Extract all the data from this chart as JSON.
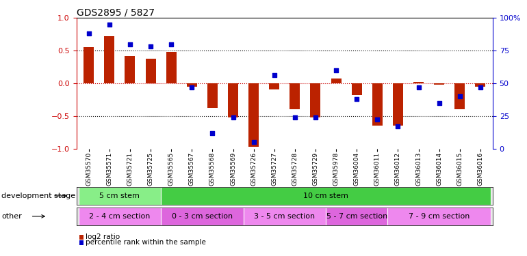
{
  "title": "GDS2895 / 5827",
  "samples": [
    "GSM35570",
    "GSM35571",
    "GSM35721",
    "GSM35725",
    "GSM35565",
    "GSM35567",
    "GSM35568",
    "GSM35569",
    "GSM35726",
    "GSM35727",
    "GSM35728",
    "GSM35729",
    "GSM35978",
    "GSM36004",
    "GSM36011",
    "GSM36012",
    "GSM36013",
    "GSM36014",
    "GSM36015",
    "GSM36016"
  ],
  "log2_ratio": [
    0.55,
    0.72,
    0.42,
    0.38,
    0.48,
    -0.05,
    -0.38,
    -0.52,
    -0.97,
    -0.1,
    -0.4,
    -0.52,
    0.07,
    -0.18,
    -0.65,
    -0.65,
    0.02,
    -0.02,
    -0.4,
    -0.05
  ],
  "percentile": [
    88,
    95,
    80,
    78,
    80,
    47,
    12,
    24,
    5,
    56,
    24,
    24,
    60,
    38,
    22,
    17,
    47,
    35,
    40,
    47
  ],
  "bar_color": "#bb2200",
  "dot_color": "#0000cc",
  "ylim_left": [
    -1,
    1
  ],
  "ylim_right": [
    0,
    100
  ],
  "yticks_left": [
    -1,
    -0.5,
    0,
    0.5,
    1
  ],
  "yticks_right": [
    0,
    25,
    50,
    75,
    100
  ],
  "hline_color": "#cc0000",
  "dotted_color": "#000000",
  "dev_stage_groups": [
    {
      "label": "5 cm stem",
      "start": 0,
      "end": 4,
      "color": "#88ee88"
    },
    {
      "label": "10 cm stem",
      "start": 4,
      "end": 20,
      "color": "#44cc44"
    }
  ],
  "other_groups": [
    {
      "label": "2 - 4 cm section",
      "start": 0,
      "end": 4,
      "color": "#ee88ee"
    },
    {
      "label": "0 - 3 cm section",
      "start": 4,
      "end": 8,
      "color": "#dd66dd"
    },
    {
      "label": "3 - 5 cm section",
      "start": 8,
      "end": 12,
      "color": "#ee88ee"
    },
    {
      "label": "5 - 7 cm section",
      "start": 12,
      "end": 15,
      "color": "#dd66dd"
    },
    {
      "label": "7 - 9 cm section",
      "start": 15,
      "end": 20,
      "color": "#ee88ee"
    }
  ],
  "dev_stage_label": "development stage",
  "other_label": "other",
  "legend_log2": "log2 ratio",
  "legend_pct": "percentile rank within the sample",
  "bg_color": "#ffffff",
  "left_axis_color": "#cc0000",
  "right_axis_color": "#0000cc"
}
